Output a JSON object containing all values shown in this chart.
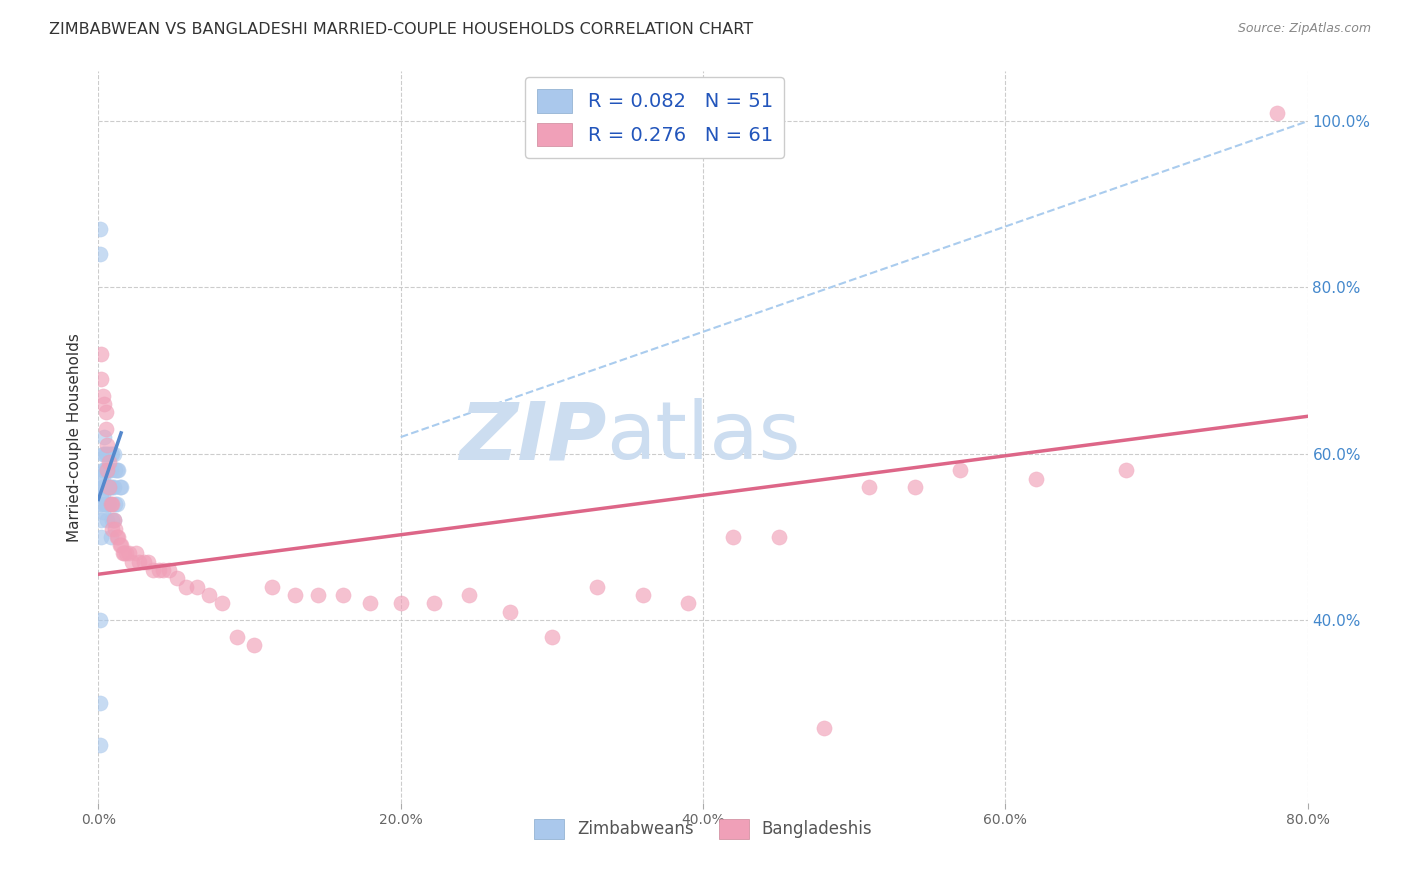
{
  "title": "ZIMBABWEAN VS BANGLADESHI MARRIED-COUPLE HOUSEHOLDS CORRELATION CHART",
  "source": "Source: ZipAtlas.com",
  "ylabel": "Married-couple Households",
  "R_zim": "0.082",
  "N_zim": "51",
  "R_ban": "0.276",
  "N_ban": "61",
  "legend_zim": "Zimbabweans",
  "legend_ban": "Bangladeshis",
  "color_zim": "#aac8ec",
  "color_ban": "#f0a0b8",
  "color_zim_line": "#5588cc",
  "color_ban_line": "#dd6688",
  "color_diag_line": "#aaccee",
  "watermark_zip": "ZIP",
  "watermark_atlas": "atlas",
  "xlim": [
    0.0,
    0.8
  ],
  "ylim": [
    0.18,
    1.06
  ],
  "x_ticks": [
    0.0,
    0.2,
    0.4,
    0.6,
    0.8
  ],
  "x_tick_labels": [
    "0.0%",
    "20.0%",
    "40.0%",
    "60.0%",
    "80.0%"
  ],
  "y_ticks": [
    0.4,
    0.6,
    0.8,
    1.0
  ],
  "y_tick_labels": [
    "40.0%",
    "60.0%",
    "80.0%",
    "100.0%"
  ],
  "zim_x": [
    0.001,
    0.001,
    0.001,
    0.002,
    0.002,
    0.002,
    0.002,
    0.002,
    0.003,
    0.003,
    0.003,
    0.003,
    0.003,
    0.003,
    0.004,
    0.004,
    0.004,
    0.004,
    0.004,
    0.005,
    0.005,
    0.005,
    0.005,
    0.006,
    0.006,
    0.006,
    0.006,
    0.006,
    0.007,
    0.007,
    0.007,
    0.007,
    0.008,
    0.008,
    0.008,
    0.008,
    0.009,
    0.009,
    0.009,
    0.01,
    0.01,
    0.01,
    0.011,
    0.011,
    0.012,
    0.012,
    0.013,
    0.014,
    0.015,
    0.001,
    0.001
  ],
  "zim_y": [
    0.87,
    0.84,
    0.25,
    0.57,
    0.55,
    0.54,
    0.52,
    0.5,
    0.6,
    0.58,
    0.57,
    0.56,
    0.55,
    0.53,
    0.62,
    0.6,
    0.58,
    0.56,
    0.54,
    0.6,
    0.58,
    0.56,
    0.54,
    0.6,
    0.58,
    0.56,
    0.54,
    0.52,
    0.6,
    0.58,
    0.56,
    0.54,
    0.6,
    0.58,
    0.56,
    0.5,
    0.6,
    0.56,
    0.52,
    0.6,
    0.56,
    0.52,
    0.58,
    0.54,
    0.58,
    0.54,
    0.58,
    0.56,
    0.56,
    0.4,
    0.3
  ],
  "ban_x": [
    0.002,
    0.002,
    0.003,
    0.004,
    0.005,
    0.005,
    0.006,
    0.006,
    0.007,
    0.007,
    0.008,
    0.009,
    0.009,
    0.01,
    0.011,
    0.012,
    0.013,
    0.014,
    0.015,
    0.016,
    0.017,
    0.018,
    0.02,
    0.022,
    0.025,
    0.027,
    0.03,
    0.033,
    0.036,
    0.04,
    0.043,
    0.047,
    0.052,
    0.058,
    0.065,
    0.073,
    0.082,
    0.092,
    0.103,
    0.115,
    0.13,
    0.145,
    0.162,
    0.18,
    0.2,
    0.222,
    0.245,
    0.272,
    0.3,
    0.33,
    0.36,
    0.39,
    0.42,
    0.45,
    0.48,
    0.51,
    0.54,
    0.57,
    0.62,
    0.68,
    0.78
  ],
  "ban_y": [
    0.72,
    0.69,
    0.67,
    0.66,
    0.65,
    0.63,
    0.61,
    0.58,
    0.59,
    0.56,
    0.54,
    0.54,
    0.51,
    0.52,
    0.51,
    0.5,
    0.5,
    0.49,
    0.49,
    0.48,
    0.48,
    0.48,
    0.48,
    0.47,
    0.48,
    0.47,
    0.47,
    0.47,
    0.46,
    0.46,
    0.46,
    0.46,
    0.45,
    0.44,
    0.44,
    0.43,
    0.42,
    0.38,
    0.37,
    0.44,
    0.43,
    0.43,
    0.43,
    0.42,
    0.42,
    0.42,
    0.43,
    0.41,
    0.38,
    0.44,
    0.43,
    0.42,
    0.5,
    0.5,
    0.27,
    0.56,
    0.56,
    0.58,
    0.57,
    0.58,
    1.01
  ],
  "zim_line_x": [
    0.0,
    0.015
  ],
  "zim_line_y": [
    0.545,
    0.625
  ],
  "ban_line_x": [
    0.0,
    0.8
  ],
  "ban_line_y": [
    0.455,
    0.645
  ],
  "diag_line_x": [
    0.2,
    0.8
  ],
  "diag_line_y": [
    0.62,
    1.0
  ]
}
